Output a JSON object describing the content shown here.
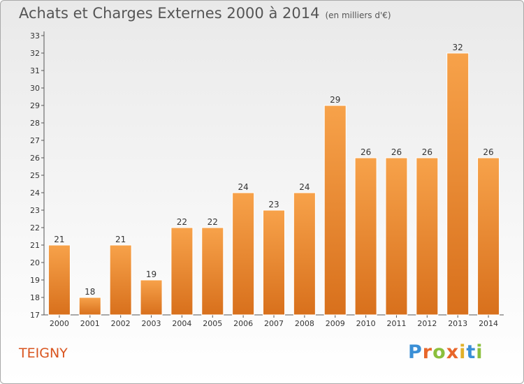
{
  "header": {
    "title": "Achats et Charges Externes 2000 à 2014",
    "unit": "(en milliers d'€)"
  },
  "footer": {
    "town": "TEIGNY",
    "logo": "Proxiti"
  },
  "colors": {
    "bar_light": "#f7a24a",
    "bar_dark": "#d8701c",
    "town_text": "#d9541e"
  },
  "chart_data": {
    "type": "bar",
    "title": "Achats et Charges Externes 2000 à 2014",
    "subtitle": "(en milliers d'€)",
    "categories": [
      "2000",
      "2001",
      "2002",
      "2003",
      "2004",
      "2005",
      "2006",
      "2007",
      "2008",
      "2009",
      "2010",
      "2011",
      "2012",
      "2013",
      "2014"
    ],
    "values": [
      21,
      18,
      21,
      19,
      22,
      22,
      24,
      23,
      24,
      29,
      26,
      26,
      26,
      32,
      26
    ],
    "ylim": [
      17,
      33
    ],
    "yticks": [
      17,
      18,
      19,
      20,
      21,
      22,
      23,
      24,
      25,
      26,
      27,
      28,
      29,
      30,
      31,
      32,
      33
    ],
    "grid": false,
    "legend": "none"
  }
}
